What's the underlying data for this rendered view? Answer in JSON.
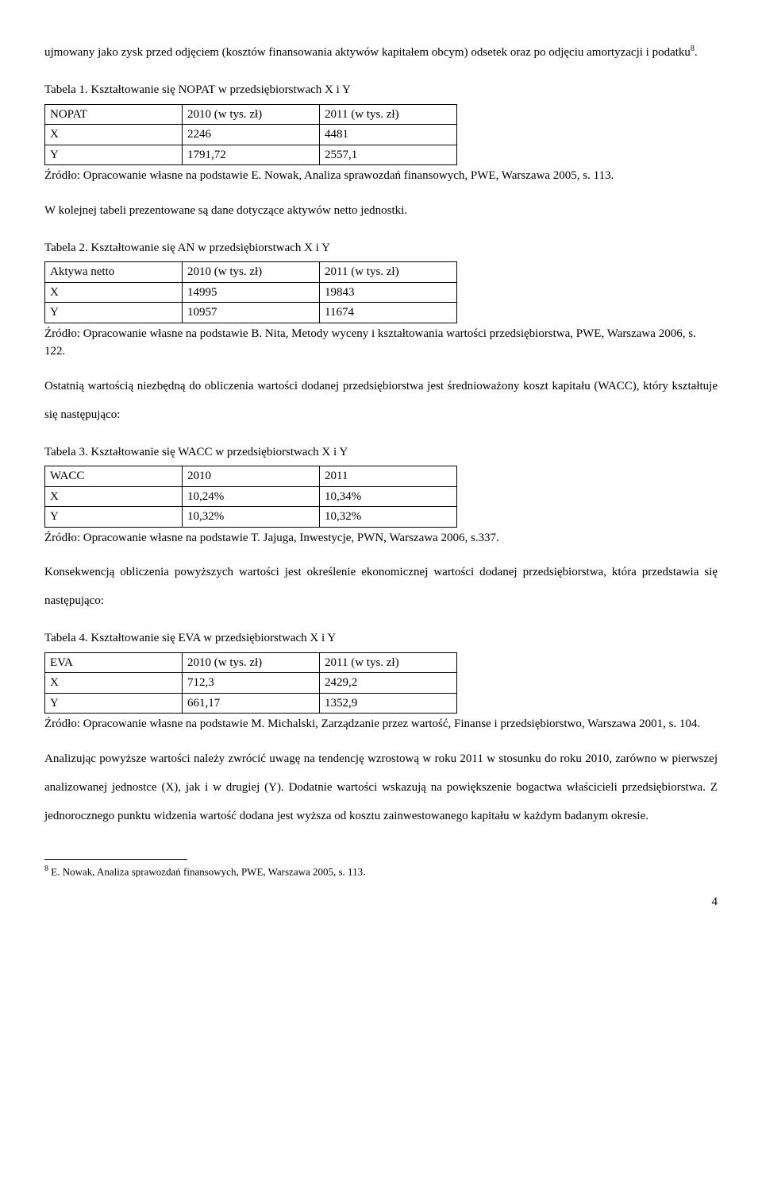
{
  "intro": {
    "p1a": "ujmowany jako zysk przed odjęciem (kosztów finansowania aktywów kapitałem obcym) odsetek oraz po odjęciu amortyzacji i podatku",
    "p1_sup": "8",
    "p1b": "."
  },
  "table1": {
    "caption": "Tabela 1. Kształtowanie się NOPAT w przedsiębiorstwach X i Y",
    "h0": "NOPAT",
    "h1": "2010 (w tys. zł)",
    "h2": "2011 (w tys. zł)",
    "r1c0": "X",
    "r1c1": "2246",
    "r1c2": "4481",
    "r2c0": "Y",
    "r2c1": "1791,72",
    "r2c2": "2557,1",
    "source": "Źródło: Opracowanie własne na podstawie E. Nowak, Analiza sprawozdań finansowych, PWE, Warszawa 2005, s. 113."
  },
  "mid1": "W kolejnej tabeli prezentowane są dane dotyczące aktywów netto jednostki.",
  "table2": {
    "caption": "Tabela 2. Kształtowanie się AN w przedsiębiorstwach X i Y",
    "h0": "Aktywa netto",
    "h1": "2010 (w tys. zł)",
    "h2": "2011 (w tys. zł)",
    "r1c0": "X",
    "r1c1": "14995",
    "r1c2": "19843",
    "r2c0": "Y",
    "r2c1": "10957",
    "r2c2": "11674",
    "source": "Źródło: Opracowanie własne na podstawie B. Nita, Metody wyceny i kształtowania wartości przedsiębiorstwa, PWE, Warszawa 2006, s. 122."
  },
  "mid2": "Ostatnią wartością niezbędną do obliczenia wartości dodanej przedsiębiorstwa jest średnioważony koszt kapitału (WACC), który kształtuje się następująco:",
  "table3": {
    "caption": "Tabela 3. Kształtowanie się WACC w przedsiębiorstwach X i Y",
    "h0": "WACC",
    "h1": "2010",
    "h2": "2011",
    "r1c0": "X",
    "r1c1": "10,24%",
    "r1c2": "10,34%",
    "r2c0": "Y",
    "r2c1": "10,32%",
    "r2c2": "10,32%",
    "source": "Źródło: Opracowanie własne na podstawie T. Jajuga, Inwestycje, PWN, Warszawa 2006, s.337."
  },
  "mid3": "Konsekwencją obliczenia powyższych wartości jest określenie ekonomicznej wartości dodanej przedsiębiorstwa, która przedstawia się następująco:",
  "table4": {
    "caption": "Tabela 4. Kształtowanie się EVA w przedsiębiorstwach X i Y",
    "h0": "EVA",
    "h1": "2010 (w tys. zł)",
    "h2": "2011 (w tys. zł)",
    "r1c0": "X",
    "r1c1": "712,3",
    "r1c2": "2429,2",
    "r2c0": "Y",
    "r2c1": "661,17",
    "r2c2": "1352,9",
    "source": "Źródło: Opracowanie własne na podstawie M. Michalski, Zarządzanie przez wartość, Finanse i przedsiębiorstwo, Warszawa 2001, s. 104."
  },
  "conclusion": "Analizując powyższe wartości należy zwrócić uwagę na tendencję wzrostową w roku 2011 w stosunku do roku 2010, zarówno w pierwszej analizowanej jednostce (X), jak i w drugiej (Y). Dodatnie wartości wskazują na powiększenie bogactwa właścicieli przedsiębiorstwa. Z jednorocznego punktu widzenia wartość dodana jest wyższa od kosztu zainwestowanego kapitału w każdym badanym okresie.",
  "footnote": {
    "num": "8",
    "text": " E. Nowak, Analiza sprawozdań finansowych, PWE, Warszawa 2005, s. 113."
  },
  "page_number": "4"
}
